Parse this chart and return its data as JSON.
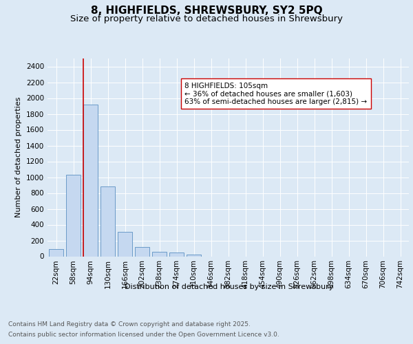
{
  "title_line1": "8, HIGHFIELDS, SHREWSBURY, SY2 5PQ",
  "title_line2": "Size of property relative to detached houses in Shrewsbury",
  "xlabel": "Distribution of detached houses by size in Shrewsbury",
  "ylabel": "Number of detached properties",
  "categories": [
    "22sqm",
    "58sqm",
    "94sqm",
    "130sqm",
    "166sqm",
    "202sqm",
    "238sqm",
    "274sqm",
    "310sqm",
    "346sqm",
    "382sqm",
    "418sqm",
    "454sqm",
    "490sqm",
    "526sqm",
    "562sqm",
    "598sqm",
    "634sqm",
    "670sqm",
    "706sqm",
    "742sqm"
  ],
  "values": [
    90,
    1030,
    1920,
    880,
    310,
    120,
    55,
    48,
    25,
    0,
    0,
    0,
    0,
    0,
    0,
    0,
    0,
    0,
    0,
    0,
    0
  ],
  "bar_color": "#c5d8f0",
  "bar_edge_color": "#5a8fc2",
  "vline_color": "#cc0000",
  "vline_index": 2,
  "annotation_text": "8 HIGHFIELDS: 105sqm\n← 36% of detached houses are smaller (1,603)\n63% of semi-detached houses are larger (2,815) →",
  "ylim": [
    0,
    2500
  ],
  "yticks": [
    0,
    200,
    400,
    600,
    800,
    1000,
    1200,
    1400,
    1600,
    1800,
    2000,
    2200,
    2400
  ],
  "background_color": "#dce9f5",
  "plot_bg_color": "#dce9f5",
  "footer_line1": "Contains HM Land Registry data © Crown copyright and database right 2025.",
  "footer_line2": "Contains public sector information licensed under the Open Government Licence v3.0.",
  "title_fontsize": 11,
  "subtitle_fontsize": 9.5,
  "axis_label_fontsize": 8,
  "tick_fontsize": 7.5,
  "annotation_fontsize": 7.5,
  "footer_fontsize": 6.5
}
